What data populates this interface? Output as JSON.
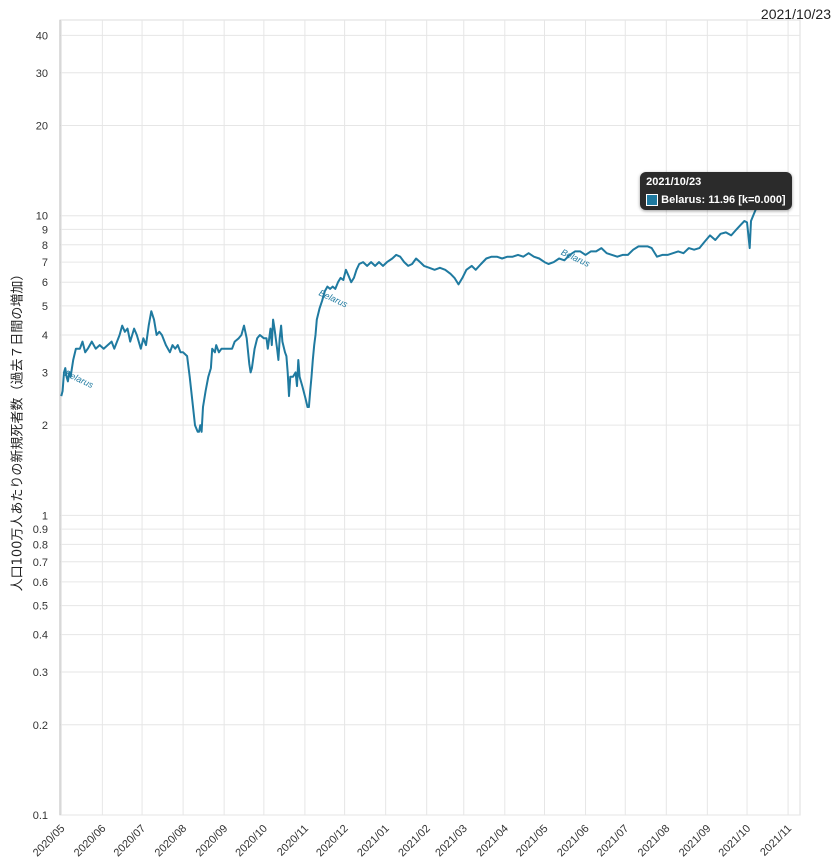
{
  "date_label": "2021/10/23",
  "tooltip": {
    "date": "2021/10/23",
    "text": "Belarus: 11.96 [k=0.000]"
  },
  "colors": {
    "series": "#1f7aa0",
    "grid": "#e6e6e6",
    "tooltip_bg": "#2b2b2b"
  },
  "chart_data": {
    "type": "line",
    "ylabel": "人口100万人あたりの新規死者数（過去７日間の増加）",
    "xlabel": "",
    "yscale": "log",
    "ylim": [
      0.1,
      45
    ],
    "xlim": [
      "2020-04-30",
      "2021-11-10"
    ],
    "y_ticks": [
      0.1,
      0.2,
      0.3,
      0.4,
      0.5,
      0.6,
      0.7,
      0.8,
      0.9,
      1,
      2,
      3,
      4,
      5,
      6,
      7,
      8,
      9,
      10,
      20,
      30,
      40
    ],
    "x_ticks": [
      "2020/05",
      "2020/06",
      "2020/07",
      "2020/08",
      "2020/09",
      "2020/10",
      "2020/11",
      "2020/12",
      "2021/01",
      "2021/02",
      "2021/03",
      "2021/04",
      "2021/05",
      "2021/06",
      "2021/07",
      "2021/08",
      "2021/09",
      "2021/10",
      "2021/11"
    ],
    "grid": true,
    "series": [
      {
        "name": "Belarus",
        "labels_on_line": [
          "2020-05-06",
          "2020-11-15",
          "2021-05-16"
        ],
        "points": [
          [
            "2020-05-01",
            2.5
          ],
          [
            "2020-05-02",
            2.6
          ],
          [
            "2020-05-03",
            3.0
          ],
          [
            "2020-05-04",
            3.1
          ],
          [
            "2020-05-05",
            2.9
          ],
          [
            "2020-05-06",
            2.8
          ],
          [
            "2020-05-07",
            3.0
          ],
          [
            "2020-05-08",
            2.9
          ],
          [
            "2020-05-10",
            3.3
          ],
          [
            "2020-05-12",
            3.6
          ],
          [
            "2020-05-15",
            3.6
          ],
          [
            "2020-05-17",
            3.8
          ],
          [
            "2020-05-19",
            3.5
          ],
          [
            "2020-05-21",
            3.6
          ],
          [
            "2020-05-24",
            3.8
          ],
          [
            "2020-05-27",
            3.6
          ],
          [
            "2020-05-30",
            3.7
          ],
          [
            "2020-06-02",
            3.6
          ],
          [
            "2020-06-05",
            3.7
          ],
          [
            "2020-06-08",
            3.8
          ],
          [
            "2020-06-10",
            3.6
          ],
          [
            "2020-06-14",
            4.0
          ],
          [
            "2020-06-16",
            4.3
          ],
          [
            "2020-06-18",
            4.1
          ],
          [
            "2020-06-20",
            4.2
          ],
          [
            "2020-06-22",
            3.8
          ],
          [
            "2020-06-25",
            4.2
          ],
          [
            "2020-06-27",
            4.0
          ],
          [
            "2020-06-30",
            3.6
          ],
          [
            "2020-07-02",
            3.9
          ],
          [
            "2020-07-04",
            3.7
          ],
          [
            "2020-07-06",
            4.3
          ],
          [
            "2020-07-08",
            4.8
          ],
          [
            "2020-07-10",
            4.5
          ],
          [
            "2020-07-12",
            4.0
          ],
          [
            "2020-07-14",
            4.1
          ],
          [
            "2020-07-16",
            4.0
          ],
          [
            "2020-07-19",
            3.7
          ],
          [
            "2020-07-22",
            3.5
          ],
          [
            "2020-07-24",
            3.7
          ],
          [
            "2020-07-26",
            3.6
          ],
          [
            "2020-07-28",
            3.7
          ],
          [
            "2020-07-30",
            3.5
          ],
          [
            "2020-08-01",
            3.5
          ],
          [
            "2020-08-04",
            3.4
          ],
          [
            "2020-08-06",
            2.9
          ],
          [
            "2020-08-08",
            2.4
          ],
          [
            "2020-08-10",
            2.0
          ],
          [
            "2020-08-12",
            1.9
          ],
          [
            "2020-08-13",
            1.9
          ],
          [
            "2020-08-14",
            2.0
          ],
          [
            "2020-08-15",
            1.9
          ],
          [
            "2020-08-16",
            2.3
          ],
          [
            "2020-08-18",
            2.6
          ],
          [
            "2020-08-20",
            2.9
          ],
          [
            "2020-08-22",
            3.1
          ],
          [
            "2020-08-23",
            3.6
          ],
          [
            "2020-08-25",
            3.5
          ],
          [
            "2020-08-26",
            3.7
          ],
          [
            "2020-08-28",
            3.5
          ],
          [
            "2020-08-30",
            3.6
          ],
          [
            "2020-09-03",
            3.6
          ],
          [
            "2020-09-07",
            3.6
          ],
          [
            "2020-09-09",
            3.8
          ],
          [
            "2020-09-12",
            3.9
          ],
          [
            "2020-09-14",
            4.0
          ],
          [
            "2020-09-16",
            4.3
          ],
          [
            "2020-09-18",
            3.9
          ],
          [
            "2020-09-20",
            3.2
          ],
          [
            "2020-09-21",
            3.0
          ],
          [
            "2020-09-22",
            3.1
          ],
          [
            "2020-09-24",
            3.6
          ],
          [
            "2020-09-26",
            3.9
          ],
          [
            "2020-09-28",
            4.0
          ],
          [
            "2020-10-01",
            3.9
          ],
          [
            "2020-10-03",
            3.9
          ],
          [
            "2020-10-04",
            3.6
          ],
          [
            "2020-10-06",
            4.2
          ],
          [
            "2020-10-07",
            3.7
          ],
          [
            "2020-10-08",
            4.5
          ],
          [
            "2020-10-09",
            4.2
          ],
          [
            "2020-10-11",
            3.6
          ],
          [
            "2020-10-12",
            3.3
          ],
          [
            "2020-10-13",
            3.9
          ],
          [
            "2020-10-14",
            4.3
          ],
          [
            "2020-10-15",
            3.8
          ],
          [
            "2020-10-17",
            3.5
          ],
          [
            "2020-10-18",
            3.4
          ],
          [
            "2020-10-19",
            3.0
          ],
          [
            "2020-10-20",
            2.5
          ],
          [
            "2020-10-21",
            2.9
          ],
          [
            "2020-10-23",
            2.9
          ],
          [
            "2020-10-25",
            3.0
          ],
          [
            "2020-10-26",
            2.7
          ],
          [
            "2020-10-27",
            3.3
          ],
          [
            "2020-10-28",
            2.9
          ],
          [
            "2020-10-30",
            2.7
          ],
          [
            "2020-11-01",
            2.5
          ],
          [
            "2020-11-02",
            2.4
          ],
          [
            "2020-11-03",
            2.3
          ],
          [
            "2020-11-04",
            2.3
          ],
          [
            "2020-11-05",
            2.6
          ],
          [
            "2020-11-06",
            2.9
          ],
          [
            "2020-11-07",
            3.3
          ],
          [
            "2020-11-08",
            3.7
          ],
          [
            "2020-11-09",
            4.0
          ],
          [
            "2020-11-10",
            4.5
          ],
          [
            "2020-11-12",
            4.9
          ],
          [
            "2020-11-14",
            5.2
          ],
          [
            "2020-11-16",
            5.6
          ],
          [
            "2020-11-18",
            5.8
          ],
          [
            "2020-11-20",
            5.7
          ],
          [
            "2020-11-22",
            5.8
          ],
          [
            "2020-11-24",
            5.7
          ],
          [
            "2020-11-26",
            6.0
          ],
          [
            "2020-11-28",
            6.2
          ],
          [
            "2020-11-30",
            6.1
          ],
          [
            "2020-12-02",
            6.6
          ],
          [
            "2020-12-04",
            6.3
          ],
          [
            "2020-12-06",
            6.0
          ],
          [
            "2020-12-08",
            6.2
          ],
          [
            "2020-12-10",
            6.6
          ],
          [
            "2020-12-12",
            6.9
          ],
          [
            "2020-12-15",
            7.0
          ],
          [
            "2020-12-18",
            6.8
          ],
          [
            "2020-12-21",
            7.0
          ],
          [
            "2020-12-24",
            6.8
          ],
          [
            "2020-12-27",
            7.0
          ],
          [
            "2020-12-30",
            6.8
          ],
          [
            "2021-01-02",
            7.0
          ],
          [
            "2021-01-06",
            7.2
          ],
          [
            "2021-01-09",
            7.4
          ],
          [
            "2021-01-12",
            7.3
          ],
          [
            "2021-01-15",
            7.0
          ],
          [
            "2021-01-18",
            6.8
          ],
          [
            "2021-01-21",
            6.9
          ],
          [
            "2021-01-24",
            7.2
          ],
          [
            "2021-01-27",
            7.0
          ],
          [
            "2021-01-30",
            6.8
          ],
          [
            "2021-02-03",
            6.7
          ],
          [
            "2021-02-07",
            6.6
          ],
          [
            "2021-02-11",
            6.7
          ],
          [
            "2021-02-15",
            6.6
          ],
          [
            "2021-02-19",
            6.4
          ],
          [
            "2021-02-22",
            6.2
          ],
          [
            "2021-02-25",
            5.9
          ],
          [
            "2021-02-28",
            6.2
          ],
          [
            "2021-03-03",
            6.6
          ],
          [
            "2021-03-07",
            6.8
          ],
          [
            "2021-03-10",
            6.6
          ],
          [
            "2021-03-14",
            6.9
          ],
          [
            "2021-03-18",
            7.2
          ],
          [
            "2021-03-22",
            7.3
          ],
          [
            "2021-03-26",
            7.3
          ],
          [
            "2021-03-30",
            7.2
          ],
          [
            "2021-04-03",
            7.3
          ],
          [
            "2021-04-07",
            7.3
          ],
          [
            "2021-04-11",
            7.4
          ],
          [
            "2021-04-15",
            7.3
          ],
          [
            "2021-04-19",
            7.5
          ],
          [
            "2021-04-23",
            7.3
          ],
          [
            "2021-04-27",
            7.2
          ],
          [
            "2021-05-01",
            7.0
          ],
          [
            "2021-05-04",
            6.9
          ],
          [
            "2021-05-08",
            7.0
          ],
          [
            "2021-05-12",
            7.2
          ],
          [
            "2021-05-16",
            7.1
          ],
          [
            "2021-05-20",
            7.4
          ],
          [
            "2021-05-24",
            7.6
          ],
          [
            "2021-05-28",
            7.6
          ],
          [
            "2021-06-01",
            7.4
          ],
          [
            "2021-06-05",
            7.6
          ],
          [
            "2021-06-09",
            7.6
          ],
          [
            "2021-06-13",
            7.8
          ],
          [
            "2021-06-17",
            7.5
          ],
          [
            "2021-06-21",
            7.4
          ],
          [
            "2021-06-25",
            7.3
          ],
          [
            "2021-06-29",
            7.4
          ],
          [
            "2021-07-03",
            7.4
          ],
          [
            "2021-07-07",
            7.7
          ],
          [
            "2021-07-11",
            7.9
          ],
          [
            "2021-07-15",
            7.9
          ],
          [
            "2021-07-18",
            7.9
          ],
          [
            "2021-07-21",
            7.8
          ],
          [
            "2021-07-25",
            7.3
          ],
          [
            "2021-07-29",
            7.4
          ],
          [
            "2021-08-02",
            7.4
          ],
          [
            "2021-08-06",
            7.5
          ],
          [
            "2021-08-10",
            7.6
          ],
          [
            "2021-08-14",
            7.5
          ],
          [
            "2021-08-18",
            7.8
          ],
          [
            "2021-08-22",
            7.7
          ],
          [
            "2021-08-26",
            7.8
          ],
          [
            "2021-08-30",
            8.2
          ],
          [
            "2021-09-03",
            8.6
          ],
          [
            "2021-09-07",
            8.3
          ],
          [
            "2021-09-11",
            8.7
          ],
          [
            "2021-09-15",
            8.8
          ],
          [
            "2021-09-19",
            8.6
          ],
          [
            "2021-09-23",
            9.0
          ],
          [
            "2021-09-26",
            9.3
          ],
          [
            "2021-09-29",
            9.6
          ],
          [
            "2021-10-01",
            9.5
          ],
          [
            "2021-10-02",
            8.6
          ],
          [
            "2021-10-03",
            7.8
          ],
          [
            "2021-10-04",
            9.6
          ],
          [
            "2021-10-06",
            10.1
          ],
          [
            "2021-10-08",
            10.6
          ],
          [
            "2021-10-11",
            11.2
          ],
          [
            "2021-10-14",
            11.5
          ],
          [
            "2021-10-18",
            11.8
          ],
          [
            "2021-10-23",
            11.96
          ]
        ]
      }
    ]
  }
}
